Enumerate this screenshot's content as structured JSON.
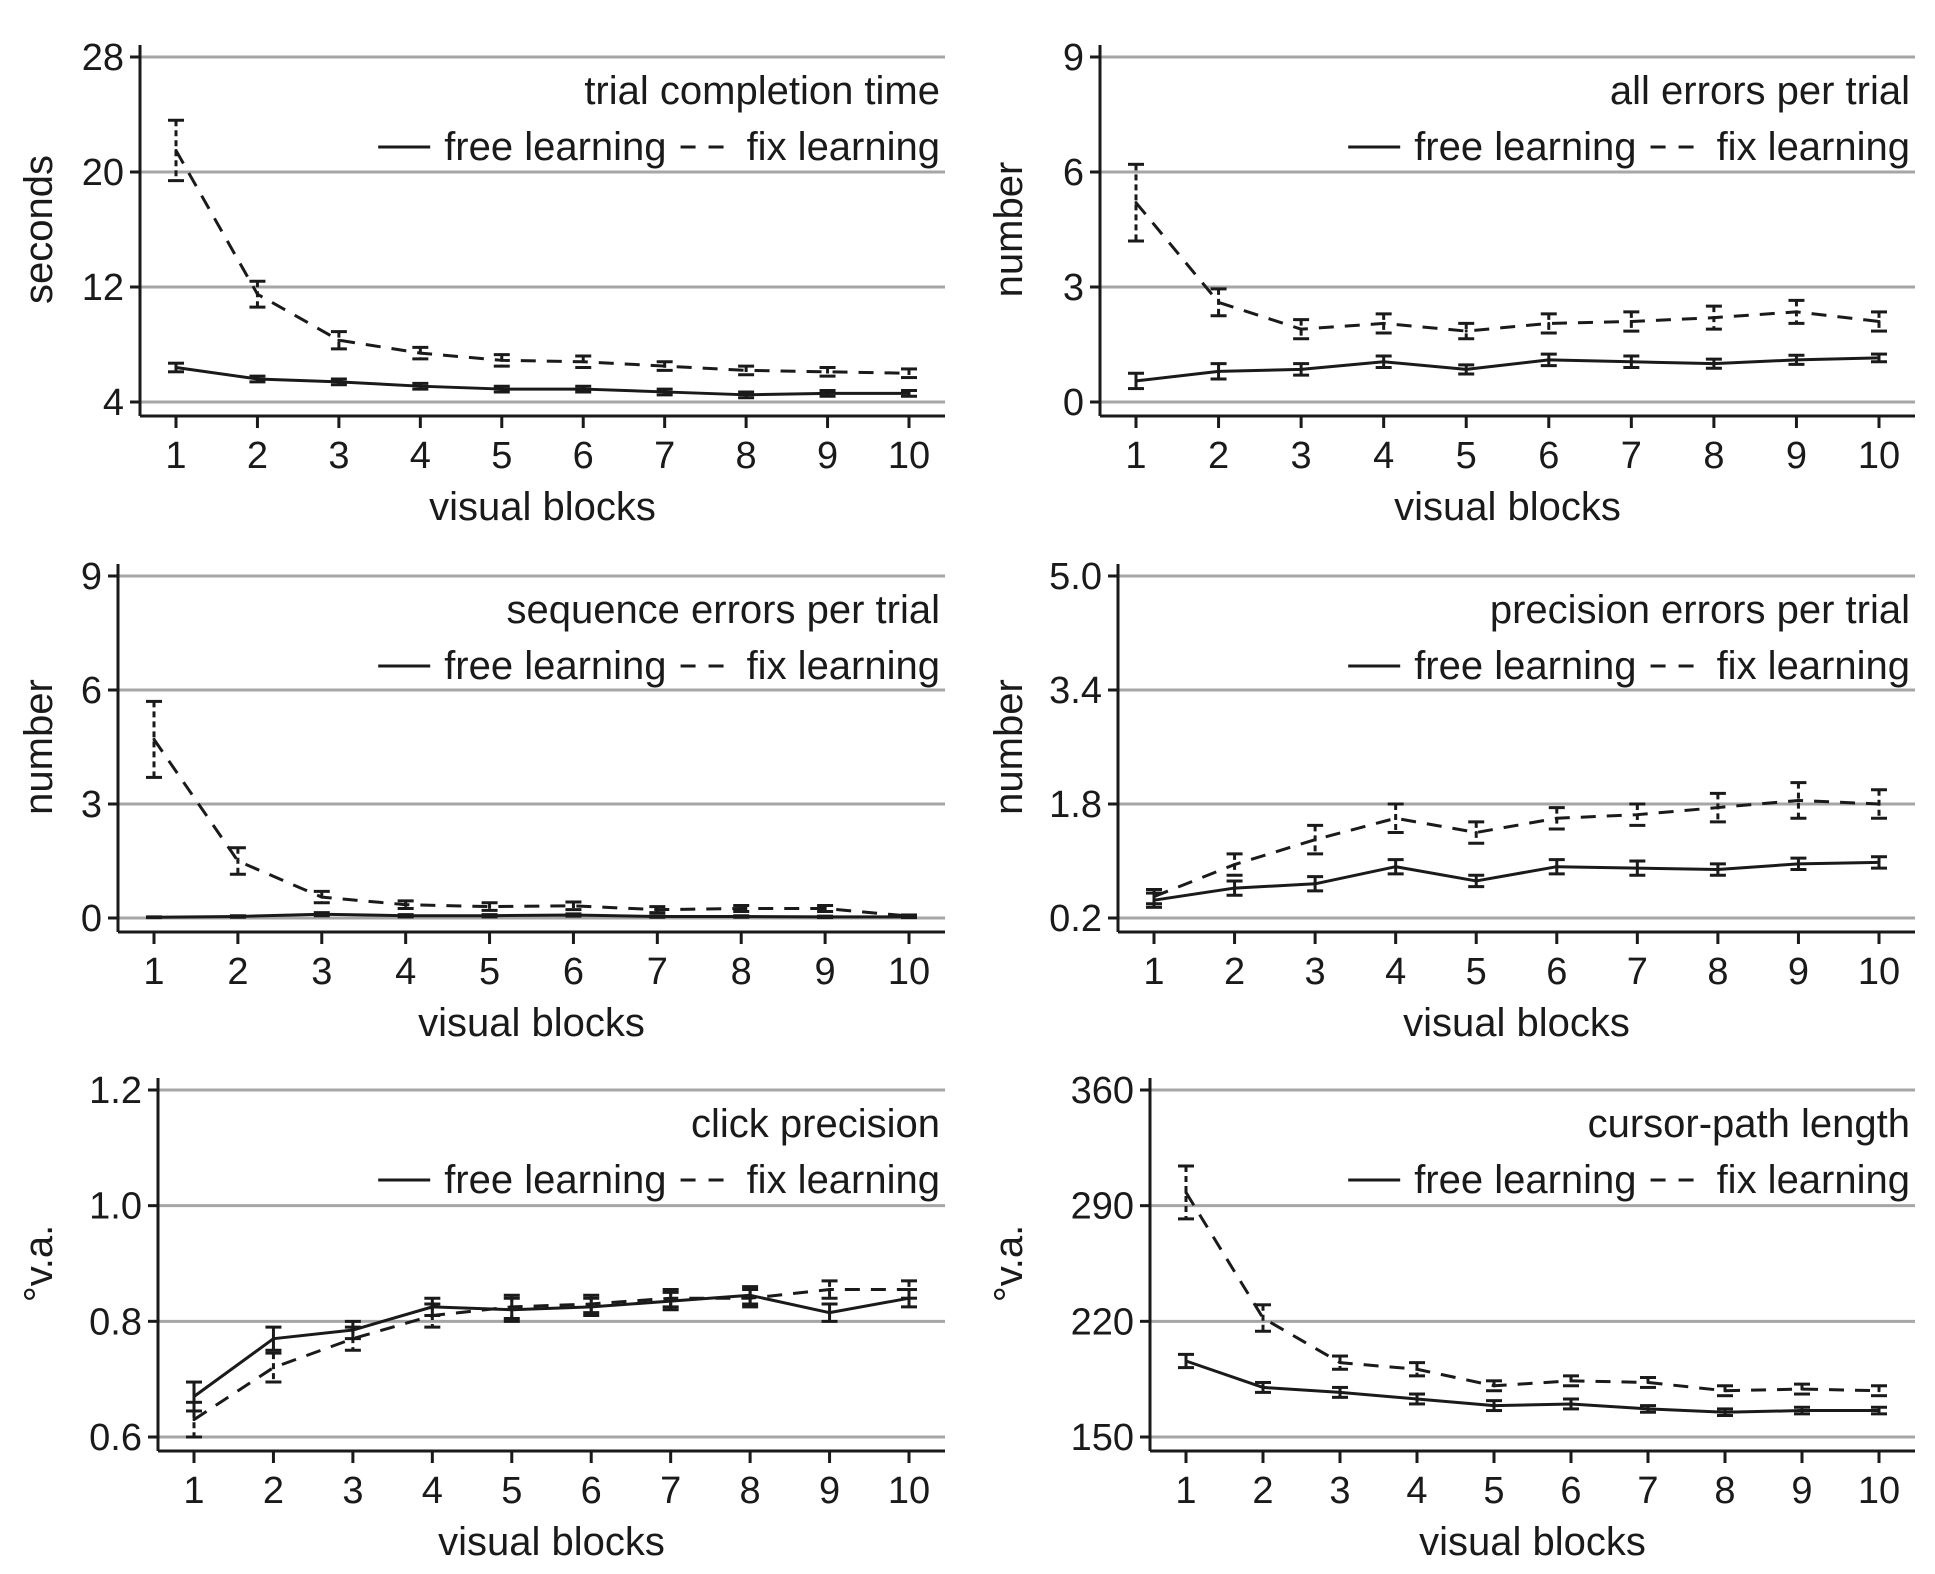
{
  "chart_data": [
    {
      "type": "line",
      "title": "trial completion time",
      "xlabel": "visual blocks",
      "ylabel": "seconds",
      "ylim": [
        4,
        28
      ],
      "yticks": [
        "4",
        "12",
        "20",
        "28"
      ],
      "categories": [
        "1",
        "2",
        "3",
        "4",
        "5",
        "6",
        "7",
        "8",
        "9",
        "10"
      ],
      "grid": true,
      "legend": "top-right",
      "series": [
        {
          "name": "free learning",
          "style": "solid",
          "values": [
            6.4,
            5.6,
            5.4,
            5.1,
            4.9,
            4.9,
            4.7,
            4.5,
            4.6,
            4.6
          ],
          "error": [
            0.3,
            0.2,
            0.2,
            0.2,
            0.2,
            0.2,
            0.2,
            0.2,
            0.2,
            0.2
          ]
        },
        {
          "name": "fix learning",
          "style": "dashed",
          "values": [
            21.5,
            11.5,
            8.3,
            7.4,
            6.9,
            6.8,
            6.5,
            6.2,
            6.1,
            6.0
          ],
          "error": [
            2.1,
            0.9,
            0.6,
            0.4,
            0.4,
            0.4,
            0.3,
            0.3,
            0.3,
            0.3
          ]
        }
      ]
    },
    {
      "type": "line",
      "title": "all errors per trial",
      "xlabel": "visual blocks",
      "ylabel": "number",
      "ylim": [
        0,
        9
      ],
      "yticks": [
        "0",
        "3",
        "6",
        "9"
      ],
      "categories": [
        "1",
        "2",
        "3",
        "4",
        "5",
        "6",
        "7",
        "8",
        "9",
        "10"
      ],
      "grid": true,
      "legend": "top-right",
      "series": [
        {
          "name": "free learning",
          "style": "solid",
          "values": [
            0.55,
            0.8,
            0.85,
            1.05,
            0.85,
            1.1,
            1.05,
            1.0,
            1.1,
            1.15
          ],
          "error": [
            0.2,
            0.2,
            0.15,
            0.15,
            0.12,
            0.15,
            0.15,
            0.12,
            0.12,
            0.1
          ]
        },
        {
          "name": "fix learning",
          "style": "dashed",
          "values": [
            5.2,
            2.6,
            1.9,
            2.05,
            1.85,
            2.05,
            2.1,
            2.2,
            2.35,
            2.1
          ],
          "error": [
            1.0,
            0.35,
            0.25,
            0.25,
            0.2,
            0.25,
            0.25,
            0.3,
            0.3,
            0.25
          ]
        }
      ]
    },
    {
      "type": "line",
      "title": "sequence errors per trial",
      "xlabel": "visual blocks",
      "ylabel": "number",
      "ylim": [
        0,
        9
      ],
      "yticks": [
        "0",
        "3",
        "6",
        "9"
      ],
      "categories": [
        "1",
        "2",
        "3",
        "4",
        "5",
        "6",
        "7",
        "8",
        "9",
        "10"
      ],
      "grid": true,
      "legend": "top-right",
      "series": [
        {
          "name": "free learning",
          "style": "solid",
          "values": [
            0.02,
            0.04,
            0.1,
            0.06,
            0.06,
            0.08,
            0.04,
            0.04,
            0.03,
            0.03
          ],
          "error": [
            0.01,
            0.02,
            0.04,
            0.03,
            0.03,
            0.03,
            0.02,
            0.02,
            0.02,
            0.02
          ]
        },
        {
          "name": "fix learning",
          "style": "dashed",
          "values": [
            4.7,
            1.5,
            0.55,
            0.35,
            0.3,
            0.32,
            0.22,
            0.25,
            0.25,
            0.05
          ],
          "error": [
            1.0,
            0.35,
            0.15,
            0.1,
            0.1,
            0.1,
            0.08,
            0.08,
            0.08,
            0.03
          ]
        }
      ]
    },
    {
      "type": "line",
      "title": "precision errors per trial",
      "xlabel": "visual blocks",
      "ylabel": "number",
      "ylim": [
        0.2,
        5.0
      ],
      "yticks": [
        "0.2",
        "1.8",
        "3.4",
        "5.0"
      ],
      "categories": [
        "1",
        "2",
        "3",
        "4",
        "5",
        "6",
        "7",
        "8",
        "9",
        "10"
      ],
      "grid": true,
      "legend": "top-right",
      "series": [
        {
          "name": "free learning",
          "style": "solid",
          "values": [
            0.45,
            0.62,
            0.68,
            0.92,
            0.72,
            0.92,
            0.9,
            0.88,
            0.96,
            0.98
          ],
          "error": [
            0.1,
            0.1,
            0.1,
            0.1,
            0.08,
            0.1,
            0.1,
            0.08,
            0.08,
            0.08
          ]
        },
        {
          "name": "fix learning",
          "style": "dashed",
          "values": [
            0.5,
            0.95,
            1.3,
            1.6,
            1.4,
            1.6,
            1.65,
            1.75,
            1.85,
            1.8
          ],
          "error": [
            0.1,
            0.15,
            0.2,
            0.2,
            0.15,
            0.15,
            0.15,
            0.2,
            0.25,
            0.2
          ]
        }
      ]
    },
    {
      "type": "line",
      "title": "click precision",
      "xlabel": "visual blocks",
      "ylabel": "°v.a.",
      "ylim": [
        0.6,
        1.2
      ],
      "yticks": [
        "0.6",
        "0.8",
        "1.0",
        "1.2"
      ],
      "categories": [
        "1",
        "2",
        "3",
        "4",
        "5",
        "6",
        "7",
        "8",
        "9",
        "10"
      ],
      "grid": true,
      "legend": "top-right",
      "series": [
        {
          "name": "free learning",
          "style": "solid",
          "values": [
            0.67,
            0.77,
            0.785,
            0.825,
            0.82,
            0.825,
            0.835,
            0.845,
            0.815,
            0.84
          ],
          "error": [
            0.025,
            0.02,
            0.015,
            0.015,
            0.02,
            0.015,
            0.015,
            0.015,
            0.015,
            0.015
          ]
        },
        {
          "name": "fix learning",
          "style": "dashed",
          "values": [
            0.63,
            0.72,
            0.77,
            0.81,
            0.825,
            0.83,
            0.84,
            0.84,
            0.855,
            0.855
          ],
          "error": [
            0.03,
            0.025,
            0.02,
            0.02,
            0.02,
            0.015,
            0.015,
            0.015,
            0.015,
            0.015
          ]
        }
      ]
    },
    {
      "type": "line",
      "title": "cursor-path length",
      "xlabel": "visual blocks",
      "ylabel": "°v.a.",
      "ylim": [
        150,
        360
      ],
      "yticks": [
        "150",
        "220",
        "290",
        "360"
      ],
      "categories": [
        "1",
        "2",
        "3",
        "4",
        "5",
        "6",
        "7",
        "8",
        "9",
        "10"
      ],
      "grid": true,
      "legend": "top-right",
      "series": [
        {
          "name": "free learning",
          "style": "solid",
          "values": [
            196,
            180,
            177,
            173,
            169,
            170,
            167,
            165,
            166,
            166
          ],
          "error": [
            4,
            3,
            3,
            3,
            3,
            3,
            2,
            2,
            2,
            2
          ]
        },
        {
          "name": "fix learning",
          "style": "dashed",
          "values": [
            298,
            222,
            195,
            191,
            181,
            184,
            183,
            178,
            179,
            178
          ],
          "error": [
            16,
            8,
            4,
            4,
            3,
            3,
            3,
            3,
            3,
            3
          ]
        }
      ]
    }
  ]
}
